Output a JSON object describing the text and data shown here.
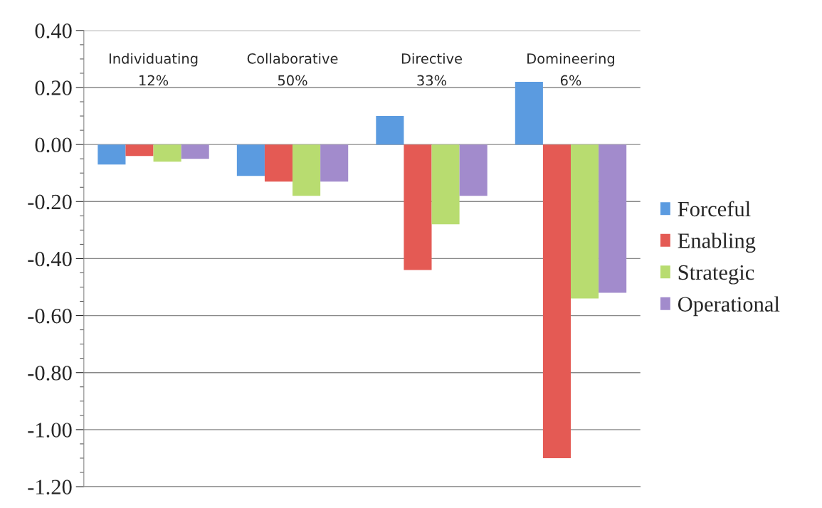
{
  "chart_data": {
    "type": "bar",
    "categories": [
      "Individuating\n12%",
      "Collaborative\n50%",
      "Directive\n33%",
      "Domineering\n6%"
    ],
    "series": [
      {
        "name": "Forceful",
        "color": "#5b9be0",
        "values": [
          -0.07,
          -0.11,
          0.1,
          0.22
        ]
      },
      {
        "name": "Enabling",
        "color": "#e45a54",
        "values": [
          -0.04,
          -0.13,
          -0.44,
          -1.1
        ]
      },
      {
        "name": "Strategic",
        "color": "#b8dc70",
        "values": [
          -0.06,
          -0.18,
          -0.28,
          -0.54
        ]
      },
      {
        "name": "Operational",
        "color": "#a28bcc",
        "values": [
          -0.05,
          -0.13,
          -0.18,
          -0.52
        ]
      }
    ],
    "ylim": [
      -1.2,
      0.4
    ],
    "yticks": [
      {
        "value": -1.2,
        "label": "-1.20"
      },
      {
        "value": -1.0,
        "label": "-1.00"
      },
      {
        "value": -0.8,
        "label": "-0.80"
      },
      {
        "value": -0.6,
        "label": "-0.60"
      },
      {
        "value": -0.4,
        "label": "-0.40"
      },
      {
        "value": -0.2,
        "label": "-0.20"
      },
      {
        "value": 0,
        "label": "0.00"
      },
      {
        "value": 0.2,
        "label": "0.20"
      },
      {
        "value": 0.4,
        "label": "0.40"
      }
    ],
    "grid": "y",
    "legend": "right"
  }
}
